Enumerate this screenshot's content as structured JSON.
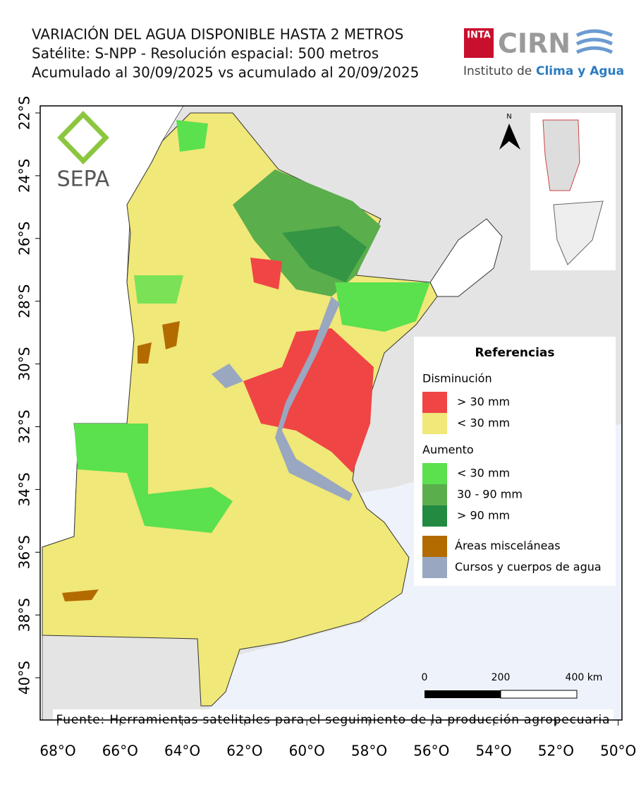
{
  "header": {
    "title_lines": [
      "VARIACIÓN DEL AGUA DISPONIBLE HASTA 2 METROS",
      "Satélite: S-NPP - Resolución espacial: 500 metros",
      "Acumulado al 30/09/2025 vs acumulado al 20/09/2025"
    ],
    "logo": {
      "inta": "INTA",
      "cirn": "CIRN",
      "institute": "Instituto de",
      "institute_highlight": "Clima y Agua"
    }
  },
  "map": {
    "sepa": "SEPA",
    "north": "N",
    "lat_labels": [
      "22°S",
      "24°S",
      "26°S",
      "28°S",
      "30°S",
      "32°S",
      "34°S",
      "36°S",
      "38°S",
      "40°S"
    ],
    "lon_labels": [
      "68°O",
      "66°O",
      "64°O",
      "62°O",
      "60°O",
      "58°O",
      "56°O",
      "54°O",
      "52°O",
      "50°O"
    ],
    "scale": [
      "0",
      "200",
      "400 km"
    ],
    "source": "Fuente: Herramientas satelitales para el seguimiento de la producción agropecuaria"
  },
  "legend": {
    "title": "Referencias",
    "groups": [
      {
        "name": "Disminución",
        "items": [
          {
            "label": "> 30 mm",
            "color": "#f04545"
          },
          {
            "label": "< 30 mm",
            "color": "#f0e878"
          }
        ]
      },
      {
        "name": "Aumento",
        "items": [
          {
            "label": "< 30 mm",
            "color": "#5be04e"
          },
          {
            "label": "30 - 90 mm",
            "color": "#5aae4c"
          },
          {
            "label": "> 90 mm",
            "color": "#238a42"
          }
        ]
      }
    ],
    "extra": [
      {
        "label": "Áreas misceláneas",
        "color": "#b36b00"
      },
      {
        "label": "Cursos y cuerpos de agua",
        "color": "#9aa7c0"
      }
    ]
  }
}
